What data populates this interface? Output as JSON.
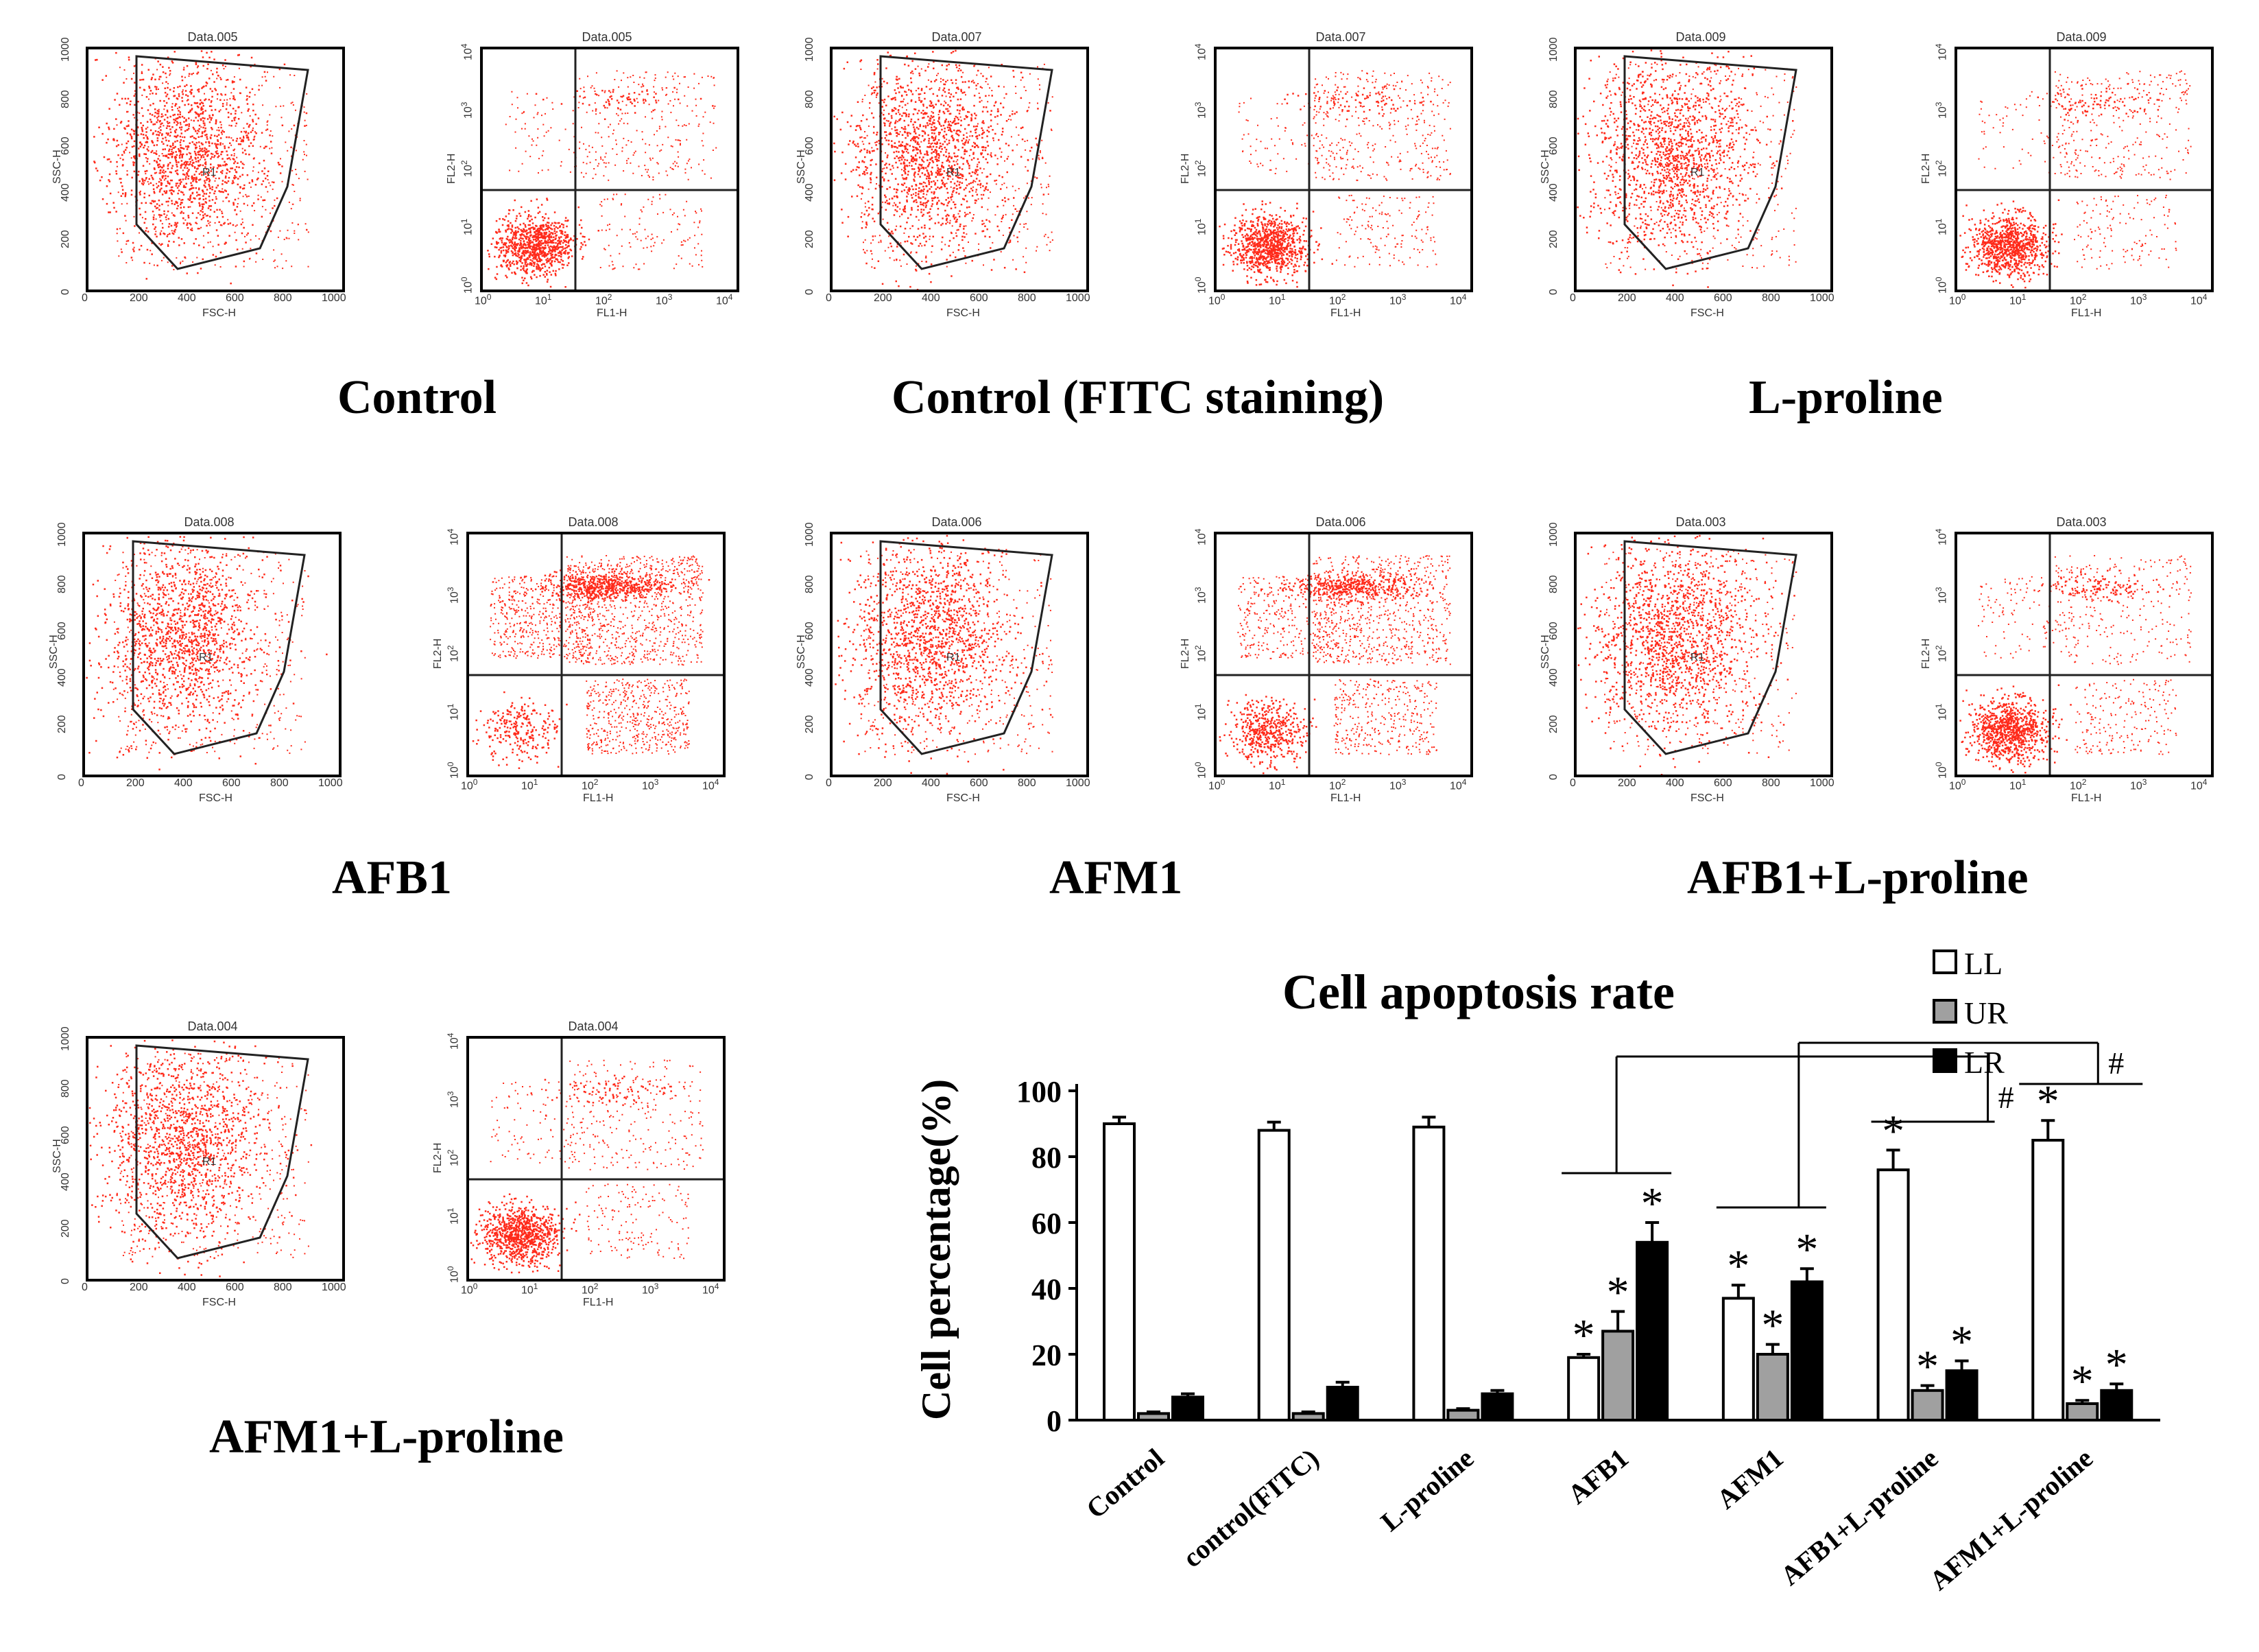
{
  "flow_panels": [
    {
      "id": "control",
      "caption": "Control",
      "scatter_title": "Data.005",
      "quad_title": "Data.005",
      "gate_label": "R1"
    },
    {
      "id": "control-fitc",
      "caption": "Control (FITC staining)",
      "scatter_title": "Data.007",
      "quad_title": "Data.007",
      "gate_label": "R1"
    },
    {
      "id": "l-proline",
      "caption": "L-proline",
      "scatter_title": "Data.009",
      "quad_title": "Data.009",
      "gate_label": "R1"
    },
    {
      "id": "afb1",
      "caption": "AFB1",
      "scatter_title": "Data.008",
      "quad_title": "Data.008",
      "gate_label": "R1"
    },
    {
      "id": "afm1",
      "caption": "AFM1",
      "scatter_title": "Data.006",
      "quad_title": "Data.006",
      "gate_label": "R1"
    },
    {
      "id": "afb1-l-proline",
      "caption": "AFB1+L-proline",
      "scatter_title": "Data.003",
      "quad_title": "Data.003",
      "gate_label": "R1"
    },
    {
      "id": "afm1-l-proline",
      "caption": "AFM1+L-proline",
      "scatter_title": "Data.004",
      "quad_title": "Data.004",
      "gate_label": "R1"
    }
  ],
  "flow_axes": {
    "scatter_x_label": "FSC-H",
    "scatter_y_label": "SSC-H",
    "scatter_ticks": [
      "0",
      "200",
      "400",
      "600",
      "800",
      "1000"
    ],
    "quad_x_label": "FL1-H",
    "quad_y_label": "FL2-H",
    "quad_ticks": [
      "10",
      "10",
      "10",
      "10",
      "10"
    ],
    "quad_tick_exponents": [
      "0",
      "1",
      "2",
      "3",
      "4"
    ]
  },
  "colors": {
    "dots": "#ff2a1a",
    "axis": "#000000",
    "bar_ll": "#ffffff",
    "bar_ur": "#a0a0a0",
    "bar_lr": "#000000"
  },
  "chart_data": {
    "type": "bar",
    "title": "Cell apoptosis rate",
    "ylabel": "Cell percentage(%)",
    "xlabel": "",
    "ylim": [
      0,
      100
    ],
    "yticks": [
      "0",
      "20",
      "40",
      "60",
      "80",
      "100"
    ],
    "categories": [
      "Control",
      "control(FITC)",
      "L-proline",
      "AFB1",
      "AFM1",
      "AFB1+L-proline",
      "AFM1+L-proline"
    ],
    "series": [
      {
        "name": "LL",
        "values": [
          90,
          88,
          89,
          19,
          37,
          76,
          85
        ],
        "errors": [
          2,
          2.5,
          3,
          1,
          4,
          6,
          6
        ]
      },
      {
        "name": "UR",
        "values": [
          2,
          2,
          3,
          27,
          20,
          9,
          5
        ],
        "errors": [
          0.5,
          0.5,
          0.5,
          6,
          3,
          1.5,
          1
        ]
      },
      {
        "name": "LR",
        "values": [
          7,
          10,
          8,
          54,
          42,
          15,
          9
        ],
        "errors": [
          1,
          1.5,
          1,
          6,
          4,
          3,
          2
        ]
      }
    ],
    "significance": {
      "star": "*",
      "hash": "#",
      "stars": [
        {
          "category": 3,
          "series": 0
        },
        {
          "category": 3,
          "series": 1
        },
        {
          "category": 3,
          "series": 2
        },
        {
          "category": 4,
          "series": 0
        },
        {
          "category": 4,
          "series": 1
        },
        {
          "category": 4,
          "series": 2
        },
        {
          "category": 5,
          "series": 0
        },
        {
          "category": 5,
          "series": 1
        },
        {
          "category": 5,
          "series": 2
        },
        {
          "category": 6,
          "series": 0
        },
        {
          "category": 6,
          "series": 1
        },
        {
          "category": 6,
          "series": 2
        }
      ]
    }
  }
}
